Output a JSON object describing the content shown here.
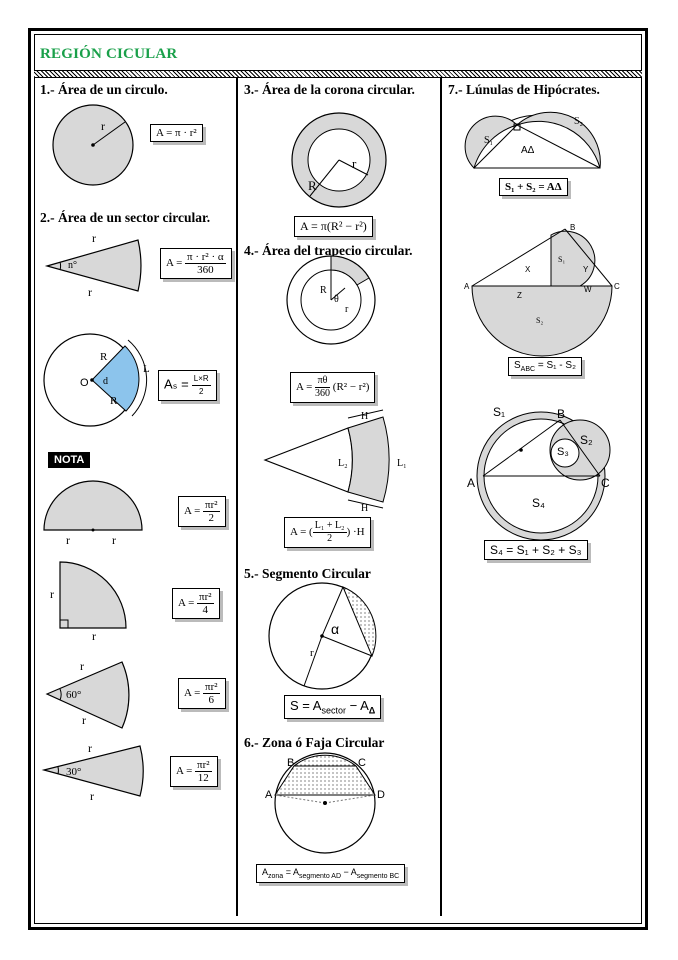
{
  "title": "REGIÓN CICULAR",
  "sections": {
    "s1": "1.- Área de un circulo.",
    "s2": "2.- Área  de un sector circular.",
    "s3": "3.- Área de la corona circular.",
    "s4": "4.- Área del trapecio circular.",
    "s5": "5.- Segmento Circular",
    "s6": "6.- Zona ó Faja Circular",
    "s7": "7.- Lúnulas de Hipócrates."
  },
  "nota": "NOTA",
  "formulas": {
    "circle": "A = π · r²",
    "sector_lhs": "A =",
    "sector_num": "π · r² · α",
    "sector_den": "360",
    "sector2_lhs": "Aₛ =",
    "sector2_num": "L×R",
    "sector2_den": "2",
    "half_num": "πr²",
    "half_den": "2",
    "quarter_num": "πr²",
    "quarter_den": "4",
    "sixth_num": "πr²",
    "sixth_den": "6",
    "twelfth_num": "πr²",
    "twelfth_den": "12",
    "a_eq": "A =",
    "corona": "A = π(R² − r²)",
    "trap1_num": "πθ",
    "trap1_den": "360",
    "trap1_rest": "(R² − r²)",
    "trap2_num": "L₁ + L₂",
    "trap2_den": "2",
    "trap2_rest": "·H",
    "segment": "S = A",
    "segment_sub": "sector",
    "segment_end": " − A",
    "segment_sub2": "Δ",
    "zona": "A",
    "zona_sub": "zona",
    "zona_mid": " = A",
    "zona_sub2": "segmento AD",
    "zona_mid2": " − A",
    "zona_sub3": "segmento BC",
    "lunula1": "S₁ + S₂ = AΔ",
    "lunula2": "S",
    "lunula2_sub": "ABC",
    "lunula2_end": " = S₁ - S₂",
    "lunula3": "S₄ = S₁ + S₂ + S₃"
  },
  "labels": {
    "r": "r",
    "R": "R",
    "n_deg": "n°",
    "O": "O",
    "d": "d",
    "L": "L",
    "deg60": "60°",
    "deg30": "30°",
    "theta": "θ",
    "H": "H",
    "L1": "L₁",
    "L2": "L₂",
    "alpha": "α",
    "A": "A",
    "B": "B",
    "C": "C",
    "D": "D",
    "X": "X",
    "Y": "Y",
    "Z": "Z",
    "W": "W",
    "S1": "S₁",
    "S2": "S₂",
    "S3": "S₃",
    "S4": "S₄",
    "AD": "AΔ"
  },
  "colors": {
    "title": "#1aa04a",
    "gray": "#d8d8d8",
    "blue": "#8cc4ec"
  }
}
